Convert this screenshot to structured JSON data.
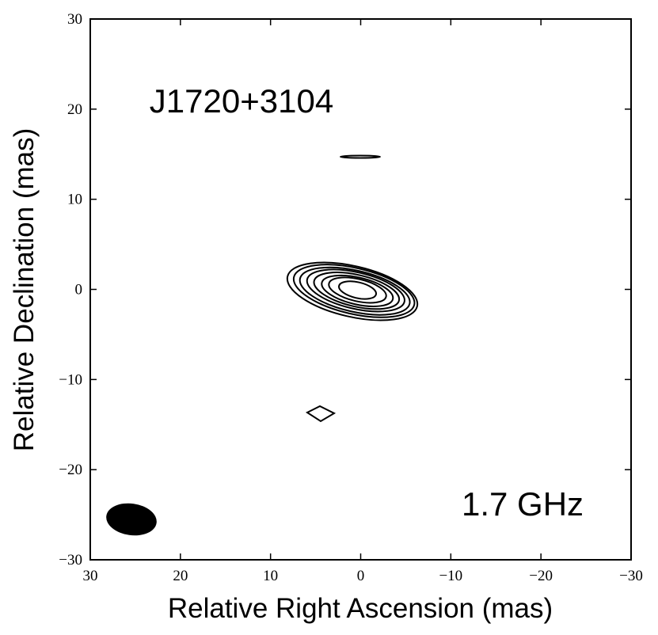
{
  "chart_data": {
    "type": "contour",
    "xlabel": "Relative Right Ascension (mas)",
    "ylabel": "Relative Declination (mas)",
    "annotations": [
      "J1720+3104",
      "1.7 GHz"
    ],
    "xlim": [
      30,
      -30
    ],
    "ylim": [
      -30,
      30
    ],
    "xticks": [
      30,
      20,
      10,
      0,
      {
        "value": -10,
        "label": "−10"
      },
      {
        "value": -20,
        "label": "−20"
      },
      {
        "value": -30,
        "label": "−30"
      }
    ],
    "yticks": [
      {
        "value": -30,
        "label": "−30"
      },
      {
        "value": -20,
        "label": "−20"
      },
      {
        "value": -10,
        "label": "−10"
      },
      0,
      10,
      20,
      30
    ]
  }
}
